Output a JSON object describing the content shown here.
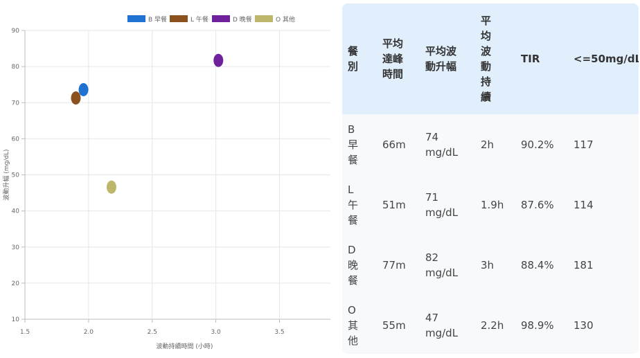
{
  "chart_data": {
    "type": "scatter",
    "xlabel": "波動持續時間 (小時)",
    "ylabel": "波動升幅 (mg/dL)",
    "xlim": [
      1.5,
      3.9
    ],
    "ylim": [
      10,
      90
    ],
    "xticks": [
      1.5,
      2.0,
      2.5,
      3.0,
      3.5
    ],
    "xtick_labels": [
      "1.5",
      "2.0",
      "2.5",
      "3.0",
      "3.5"
    ],
    "yticks": [
      10,
      20,
      30,
      40,
      50,
      60,
      70,
      80,
      90
    ],
    "ytick_labels": [
      "10",
      "20",
      "30",
      "40",
      "50",
      "60",
      "70",
      "80",
      "90"
    ],
    "grid": true,
    "legend_position": "top",
    "series": [
      {
        "name": "B 早餐",
        "color": "#1f72d1",
        "points": [
          {
            "x": 1.96,
            "y": 73.6
          }
        ]
      },
      {
        "name": "L 午餐",
        "color": "#8b5220",
        "points": [
          {
            "x": 1.9,
            "y": 71.3
          }
        ]
      },
      {
        "name": "D 晚餐",
        "color": "#6e219a",
        "points": [
          {
            "x": 3.02,
            "y": 81.7
          }
        ]
      },
      {
        "name": "O 其他",
        "color": "#bdb76b",
        "points": [
          {
            "x": 2.18,
            "y": 46.6
          }
        ]
      }
    ]
  },
  "table": {
    "headers": [
      "餐\n別",
      "平均\n達峰\n時間",
      "平均波\n動升幅",
      "平\n均\n波\n動\n持\n續",
      "TIR",
      "<=50mg/dL"
    ],
    "rows": [
      [
        "B\n早\n餐",
        "66m",
        "74\nmg/dL",
        "2h",
        "90.2%",
        "117"
      ],
      [
        "L\n午\n餐",
        "51m",
        "71\nmg/dL",
        "1.9h",
        "87.6%",
        "114"
      ],
      [
        "D\n晚\n餐",
        "77m",
        "82\nmg/dL",
        "3h",
        "88.4%",
        "181"
      ],
      [
        "O\n其\n他",
        "55m",
        "47\nmg/dL",
        "2.2h",
        "98.9%",
        "130"
      ]
    ]
  }
}
